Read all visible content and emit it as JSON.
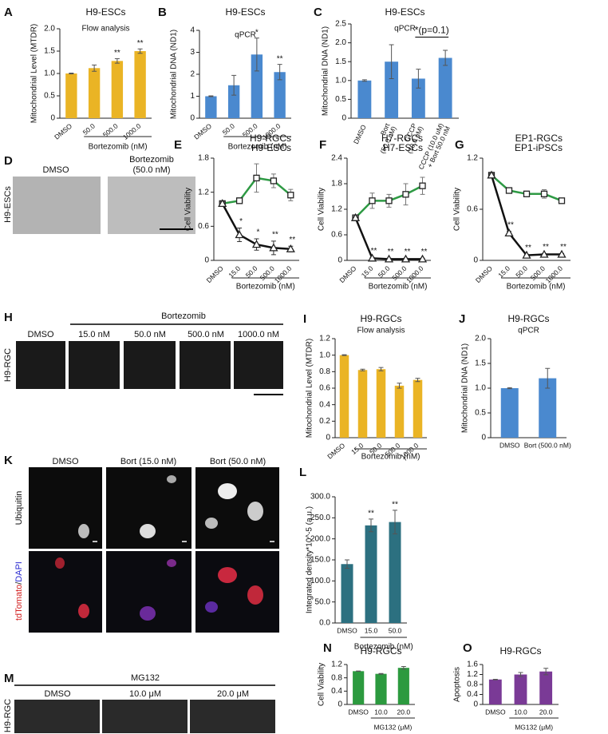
{
  "chart_data": [
    {
      "type": "bar",
      "panel": "A",
      "title": "H9-ESCs",
      "subtitle": "Flow analysis",
      "ylabel": "Mitochondrial Level (MTDR)",
      "xlabel": "Bortezomib (nM)",
      "categories": [
        "DMSO",
        "50.0",
        "500.0",
        "1000.0"
      ],
      "values": [
        1.0,
        1.12,
        1.28,
        1.5
      ],
      "errors": [
        0.01,
        0.07,
        0.05,
        0.05
      ],
      "significance": [
        null,
        null,
        "**",
        "**"
      ],
      "color": "#eab425",
      "ylim": [
        0,
        2
      ],
      "yticks": [
        0,
        0.5,
        {
          "value": 1,
          "label": "1.0"
        },
        1.5,
        {
          "value": 2,
          "label": "2.0"
        }
      ]
    },
    {
      "type": "bar",
      "panel": "B",
      "title": "H9-ESCs",
      "subtitle": "qPCR",
      "ylabel": "Mitochondrial DNA (ND1)",
      "xlabel": "Bortezomib (nM)",
      "categories": [
        "DMSO",
        "50.0",
        "500.0",
        "1000.0"
      ],
      "values": [
        1.0,
        1.5,
        2.9,
        2.1
      ],
      "errors": [
        0.02,
        0.45,
        0.75,
        0.35
      ],
      "significance": [
        null,
        null,
        "*",
        "**"
      ],
      "color": "#4a89cf",
      "ylim": [
        0,
        4
      ],
      "yticks": [
        0,
        1,
        2,
        3,
        4
      ]
    },
    {
      "type": "bar",
      "panel": "C",
      "title": "H9-ESCs",
      "subtitle": "qPCR",
      "ylabel": "Mitochondrial DNA (ND1)",
      "annotation": "*(p=0.1)",
      "categories": [
        [
          "DMSO"
        ],
        [
          "Bort",
          "(50.0 nM)"
        ],
        [
          "CCCP",
          "(10.0 uM)"
        ],
        [
          "CCCP (10.0 uM)",
          "+ Bort 50.0 nM"
        ]
      ],
      "values": [
        1.0,
        1.5,
        1.05,
        1.6
      ],
      "errors": [
        0.02,
        0.45,
        0.25,
        0.2
      ],
      "color": "#4a89cf",
      "ylim": [
        0,
        2.5
      ],
      "yticks": [
        0,
        0.5,
        {
          "value": 1,
          "label": "1.0"
        },
        1.5,
        {
          "value": 2,
          "label": "2.0"
        },
        2.5
      ]
    },
    {
      "type": "line",
      "panel": "E",
      "ylabel": "Cell Viability",
      "xlabel": "Bortezomib (nM)",
      "categories": [
        "DMSO",
        "15.0",
        "50.0",
        "500.0",
        "1000.0"
      ],
      "series": [
        {
          "name": "H9-RGCs",
          "color": "#2e9a44",
          "marker": "square",
          "values": [
            1.0,
            1.05,
            1.45,
            1.4,
            1.15
          ],
          "errors": [
            0.03,
            0.05,
            0.25,
            0.12,
            0.1
          ]
        },
        {
          "name": "H9-ESCs",
          "color": "#111111",
          "marker": "triangle",
          "values": [
            1.0,
            0.45,
            0.28,
            0.22,
            0.2
          ],
          "errors": [
            0.03,
            0.12,
            0.1,
            0.12,
            0.05
          ],
          "significance": [
            null,
            "*",
            "*",
            "**",
            "**"
          ]
        }
      ],
      "ylim": [
        0,
        1.8
      ],
      "yticks": [
        0,
        0.6,
        1.2,
        1.8
      ]
    },
    {
      "type": "line",
      "panel": "F",
      "ylabel": "Cell Viability",
      "xlabel": "Bortezomib (nM)",
      "categories": [
        "DMSO",
        "15.0",
        "50.0",
        "500.0",
        "1000.0"
      ],
      "series": [
        {
          "name": "H7-RGCs",
          "color": "#2e9a44",
          "marker": "square",
          "values": [
            1.0,
            1.4,
            1.4,
            1.55,
            1.75
          ],
          "errors": [
            0.03,
            0.18,
            0.15,
            0.25,
            0.2
          ]
        },
        {
          "name": "H7-ESCs",
          "color": "#111111",
          "marker": "triangle",
          "values": [
            1.0,
            0.05,
            0.03,
            0.03,
            0.03
          ],
          "errors": [
            0.03,
            0.02,
            0.02,
            0.02,
            0.02
          ],
          "significance": [
            null,
            "**",
            "**",
            "**",
            "**"
          ]
        }
      ],
      "ylim": [
        0,
        2.4
      ],
      "yticks": [
        0,
        0.6,
        1.2,
        1.8,
        2.4
      ]
    },
    {
      "type": "line",
      "panel": "G",
      "ylabel": "Cell Viability",
      "xlabel": "Bortezomib (nM)",
      "categories": [
        "DMSO",
        "15.0",
        "50.0",
        "500.0",
        "1000.0"
      ],
      "series": [
        {
          "name": "EP1-RGCs",
          "color": "#2e9a44",
          "marker": "square",
          "values": [
            1.0,
            0.82,
            0.78,
            0.78,
            0.7
          ],
          "errors": [
            0.02,
            0.02,
            0.02,
            0.05,
            0.03
          ]
        },
        {
          "name": "EP1-iPSCs",
          "color": "#111111",
          "marker": "triangle",
          "values": [
            1.0,
            0.32,
            0.06,
            0.07,
            0.07
          ],
          "errors": [
            0.02,
            0.02,
            0.01,
            0.01,
            0.01
          ],
          "significance": [
            null,
            "**",
            "**",
            "**",
            "**"
          ]
        }
      ],
      "ylim": [
        0,
        1.2
      ],
      "yticks": [
        0,
        0.6,
        1.2
      ]
    },
    {
      "type": "bar",
      "panel": "I",
      "title": "H9-RGCs",
      "subtitle": "Flow analysis",
      "ylabel": "Mitochondrial Level (MTDR)",
      "xlabel": "Bortezomib (nM)",
      "categories": [
        "DMSO",
        "15.0",
        "50.0",
        "500.0",
        "1000.0"
      ],
      "values": [
        1.0,
        0.82,
        0.83,
        0.63,
        0.7
      ],
      "errors": [
        0.005,
        0.01,
        0.02,
        0.03,
        0.02
      ],
      "color": "#eab425",
      "ylim": [
        0,
        1.2
      ],
      "yticks": [
        0,
        0.2,
        0.4,
        0.6,
        0.8,
        {
          "value": 1,
          "label": "1.0"
        },
        1.2
      ]
    },
    {
      "type": "bar",
      "panel": "J",
      "title": "H9-RGCs",
      "subtitle": "qPCR",
      "ylabel": "Mitochondrial DNA (ND1)",
      "categories": [
        "DMSO",
        "Bort (500.0 nM)"
      ],
      "values": [
        1.0,
        1.2
      ],
      "errors": [
        0.01,
        0.2
      ],
      "color": "#4a89cf",
      "ylim": [
        0,
        2
      ],
      "yticks": [
        0,
        0.5,
        {
          "value": 1,
          "label": "1.0"
        },
        1.5,
        {
          "value": 2,
          "label": "2.0"
        }
      ]
    },
    {
      "type": "bar",
      "panel": "L",
      "ylabel": "Integrated density*10^-5 (a.u.)",
      "xlabel": "Bortezomib (nM)",
      "categories": [
        "DMSO",
        "15.0",
        "50.0"
      ],
      "values": [
        140,
        232,
        240
      ],
      "errors": [
        10,
        15,
        28
      ],
      "significance": [
        null,
        "**",
        "**"
      ],
      "color": "#2c7080",
      "ylim": [
        0,
        300
      ],
      "yticks": [
        {
          "value": 0,
          "label": "0.0"
        },
        {
          "value": 50,
          "label": "50.0"
        },
        {
          "value": 100,
          "label": "100.0"
        },
        {
          "value": 150,
          "label": "150.0"
        },
        {
          "value": 200,
          "label": "200.0"
        },
        {
          "value": 250,
          "label": "250.0"
        },
        {
          "value": 300,
          "label": "300.0"
        }
      ]
    },
    {
      "type": "bar",
      "panel": "N",
      "title": "H9-RGCs",
      "ylabel": "Cell Viability",
      "xlabel": "MG132 (μM)",
      "categories": [
        "DMSO",
        "10.0",
        "20.0"
      ],
      "values": [
        1.0,
        0.92,
        1.1
      ],
      "errors": [
        0.005,
        0.01,
        0.04
      ],
      "color": "#2c9a3f",
      "ylim": [
        0,
        1.2
      ],
      "yticks": [
        0,
        0.4,
        0.8,
        1.2
      ]
    },
    {
      "type": "bar",
      "panel": "O",
      "title": "H9-RGCs",
      "ylabel": "Apoptosis",
      "xlabel": "MG132 (μM)",
      "categories": [
        "DMSO",
        "10.0",
        "20.0"
      ],
      "values": [
        1.0,
        1.2,
        1.32
      ],
      "errors": [
        0.01,
        0.08,
        0.13
      ],
      "color": "#7a3a96",
      "ylim": [
        0,
        1.6
      ],
      "yticks": [
        0,
        0.4,
        0.8,
        1.2,
        1.6
      ]
    }
  ],
  "image_panels": {
    "D": {
      "panel": "D",
      "row_label": "H9-ESCs",
      "columns": [
        [
          "DMSO"
        ],
        [
          "Bortezomib",
          "(50.0 nM)"
        ]
      ]
    },
    "H": {
      "panel": "H",
      "row_label": "H9-RGC",
      "header": "Bortezomib",
      "columns": [
        "DMSO",
        "15.0 nM",
        "50.0 nM",
        "500.0 nM",
        "1000.0 nM"
      ]
    },
    "K": {
      "panel": "K",
      "columns": [
        "DMSO",
        "Bort (15.0 nM)",
        "Bort (50.0 nM)"
      ],
      "row_labels": [
        "Ubiquitin",
        [
          "tdTomato",
          "/",
          "DAPI"
        ]
      ]
    },
    "M": {
      "panel": "M",
      "row_label": "H9-RGC",
      "header": "MG132",
      "columns": [
        "DMSO",
        "10.0 μM",
        "20.0 μM"
      ]
    }
  }
}
